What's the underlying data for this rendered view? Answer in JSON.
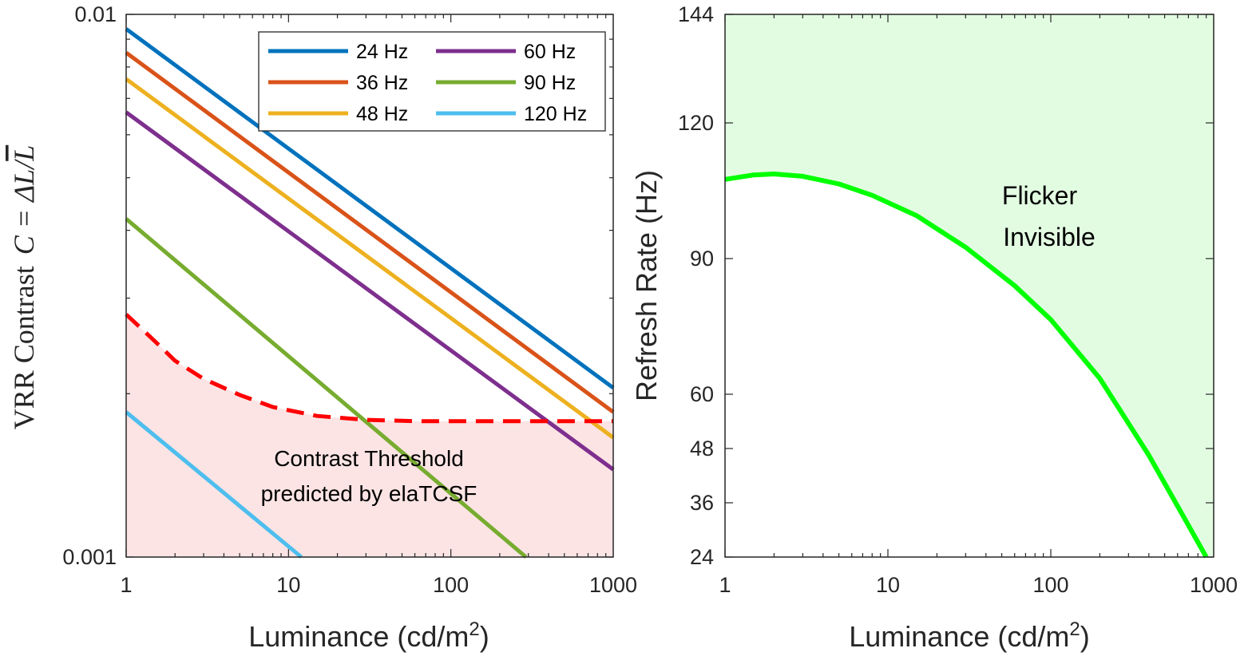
{
  "chart_data": [
    {
      "type": "line",
      "x_scale": "log",
      "y_scale": "log",
      "xlim": [
        1,
        1000
      ],
      "ylim": [
        0.001,
        0.01
      ],
      "xticks": [
        "1",
        "10",
        "100",
        "1000"
      ],
      "yticks": [
        "0.001",
        "0.01"
      ],
      "xlabel": "Luminance (cd/m",
      "xlabel_sup": "2",
      "xlabel_end": ")",
      "ylabel": "VRR Contrast  C = ΔL/L̅",
      "ylabel_text": "VRR Contrast",
      "ylabel_math_main": "C = ΔL/",
      "ylabel_math_bar": "L",
      "legend_position": "top-right",
      "legend_columns": 2,
      "series": [
        {
          "name": "24 Hz",
          "color": "#0072BD",
          "x": [
            1,
            1000
          ],
          "y": [
            0.0094,
            0.00205
          ]
        },
        {
          "name": "36 Hz",
          "color": "#D95319",
          "x": [
            1,
            1000
          ],
          "y": [
            0.0085,
            0.00185
          ]
        },
        {
          "name": "48 Hz",
          "color": "#EDB120",
          "x": [
            1,
            1000
          ],
          "y": [
            0.0076,
            0.00166
          ]
        },
        {
          "name": "60 Hz",
          "color": "#7E2F8E",
          "x": [
            1,
            1000
          ],
          "y": [
            0.0066,
            0.00145
          ]
        },
        {
          "name": "90 Hz",
          "color": "#77AC30",
          "x": [
            1,
            290
          ],
          "y": [
            0.0042,
            0.001
          ]
        },
        {
          "name": "120 Hz",
          "color": "#4DBEEE",
          "x": [
            1,
            12
          ],
          "y": [
            0.00185,
            0.001
          ]
        }
      ],
      "threshold": {
        "color": "#FF0000",
        "fill": "#FCE4E4",
        "x": [
          1,
          1.5,
          2,
          3,
          5,
          8,
          15,
          30,
          60,
          100,
          200,
          500,
          1000
        ],
        "y": [
          0.0028,
          0.0025,
          0.0023,
          0.00213,
          0.00199,
          0.00189,
          0.00182,
          0.00179,
          0.00178,
          0.00178,
          0.00178,
          0.00178,
          0.00178
        ]
      },
      "annotation": [
        "Contrast Threshold",
        "predicted by elaTCSF"
      ]
    },
    {
      "type": "area",
      "x_scale": "log",
      "y_scale": "linear",
      "xlim": [
        1,
        1000
      ],
      "ylim": [
        24,
        144
      ],
      "xticks": [
        "1",
        "10",
        "100",
        "1000"
      ],
      "yticks": [
        "24",
        "36",
        "48",
        "60",
        "90",
        "120",
        "144"
      ],
      "xlabel": "Luminance (cd/m",
      "xlabel_sup": "2",
      "xlabel_end": ")",
      "ylabel": "Refresh Rate (Hz)",
      "series": [
        {
          "name": "",
          "color": "#00FF00",
          "fill": "#E2FCE2",
          "x": [
            1,
            1.5,
            2,
            3,
            5,
            8,
            15,
            30,
            60,
            100,
            200,
            400,
            700,
            900
          ],
          "y": [
            107.5,
            108.5,
            108.7,
            108.2,
            106.5,
            104,
            99.5,
            92.5,
            84,
            76.5,
            63.5,
            46.5,
            31,
            24
          ]
        }
      ],
      "annotation": [
        "Flicker",
        "Invisible"
      ]
    }
  ]
}
